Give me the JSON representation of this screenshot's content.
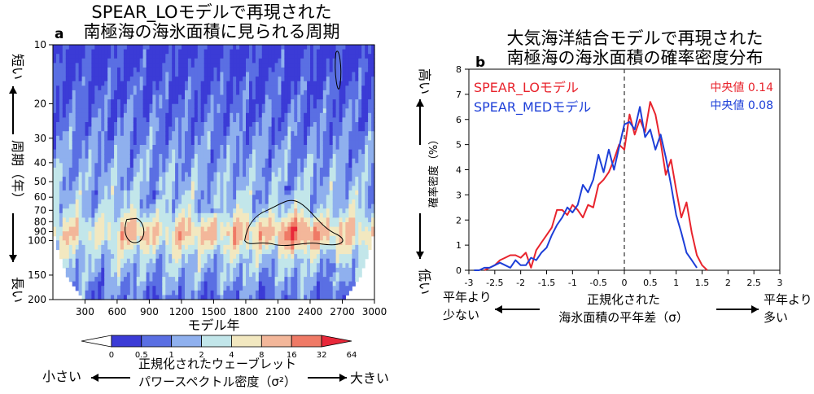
{
  "chart_data": [
    {
      "type": "heatmap",
      "panel_label": "a",
      "title_lines": [
        "SPEAR_LOモデルで再現された",
        "南極海の海氷面積に見られる周期"
      ],
      "xlabel": "モデル年",
      "x_ticks": [
        300,
        600,
        900,
        1200,
        1500,
        1800,
        2100,
        2400,
        2700,
        3000
      ],
      "xlim": [
        1,
        3000
      ],
      "y_ticks": [
        10,
        20,
        30,
        40,
        50,
        60,
        70,
        80,
        90,
        100,
        150,
        200
      ],
      "ylim": [
        10,
        200
      ],
      "y_scale": "log",
      "y_inverted": true,
      "ylabel_center": "周期（年）",
      "ylabel_top": "短い",
      "ylabel_bottom": "長い",
      "colorbar": {
        "levels": [
          "0",
          "0.5",
          "1",
          "2",
          "4",
          "8",
          "16",
          "32",
          "64"
        ],
        "colors": [
          "#ffffff",
          "#3b3bd6",
          "#5a6fe3",
          "#8fb0ee",
          "#c2e6ea",
          "#f2e8c0",
          "#f3b79a",
          "#ef7a66",
          "#e8283a",
          "#e8283a"
        ],
        "label_lines": [
          "正規化されたウェーブレット",
          "パワースペクトル密度（σ²）"
        ],
        "left_text": "小さい",
        "right_text": "大きい"
      }
    },
    {
      "type": "line",
      "panel_label": "b",
      "title_lines": [
        "大気海洋結合モデルで再現された",
        "南極海の海氷面積の確率密度分布"
      ],
      "xlim": [
        -3,
        3
      ],
      "ylim": [
        0,
        8
      ],
      "x_ticks": [
        "-3",
        "-2.5",
        "-2",
        "-1.5",
        "-1",
        "-0.5",
        "0",
        "0.5",
        "1",
        "1.5",
        "2",
        "2.5",
        "3"
      ],
      "y_ticks": [
        "0",
        "1",
        "2",
        "3",
        "4",
        "5",
        "6",
        "7",
        "8"
      ],
      "ylabel": "確率密度（%）",
      "ylabel_top": "高い",
      "ylabel_bottom": "低い",
      "xlabel_lines": [
        "正規化された",
        "海氷面積の平年差（σ）"
      ],
      "left_text_lines": [
        "平年より",
        "少ない"
      ],
      "right_text_lines": [
        "平年より",
        "多い"
      ],
      "zero_line": "dashed",
      "series": [
        {
          "name": "SPEAR_LOモデル",
          "median_label": "中央値 0.14",
          "color": "#e8242d",
          "x": [
            -2.7,
            -2.6,
            -2.5,
            -2.4,
            -2.3,
            -2.2,
            -2.1,
            -2.0,
            -1.9,
            -1.8,
            -1.7,
            -1.6,
            -1.5,
            -1.4,
            -1.3,
            -1.2,
            -1.1,
            -1.0,
            -0.9,
            -0.8,
            -0.7,
            -0.6,
            -0.5,
            -0.4,
            -0.3,
            -0.2,
            -0.1,
            0.0,
            0.1,
            0.2,
            0.3,
            0.4,
            0.5,
            0.6,
            0.7,
            0.8,
            0.9,
            1.0,
            1.1,
            1.2,
            1.3,
            1.4,
            1.5,
            1.6
          ],
          "y": [
            0,
            0.1,
            0.2,
            0.4,
            0.5,
            0.6,
            0.6,
            0.5,
            0.7,
            0.1,
            0.8,
            1.1,
            1.4,
            1.7,
            2.4,
            2.4,
            2.2,
            2.6,
            2.4,
            2.1,
            2.6,
            2.5,
            3.4,
            3.6,
            3.9,
            4.4,
            5.0,
            4.8,
            6.2,
            5.4,
            6.0,
            5.5,
            6.7,
            6.2,
            5.1,
            3.8,
            4.4,
            3.2,
            2.1,
            2.7,
            1.5,
            0.6,
            0.2,
            0
          ]
        },
        {
          "name": "SPEAR_MEDモデル",
          "median_label": "中央値 0.08",
          "color": "#1d3fd8",
          "x": [
            -2.9,
            -2.8,
            -2.7,
            -2.6,
            -2.5,
            -2.4,
            -2.3,
            -2.2,
            -2.1,
            -2.0,
            -1.9,
            -1.8,
            -1.7,
            -1.6,
            -1.5,
            -1.4,
            -1.3,
            -1.2,
            -1.1,
            -1.0,
            -0.9,
            -0.8,
            -0.7,
            -0.6,
            -0.5,
            -0.4,
            -0.3,
            -0.2,
            -0.1,
            0.0,
            0.1,
            0.2,
            0.3,
            0.4,
            0.5,
            0.6,
            0.7,
            0.8,
            0.9,
            1.0,
            1.1,
            1.2,
            1.3,
            1.4
          ],
          "y": [
            0,
            0,
            0.1,
            0.1,
            0.2,
            0.3,
            0.2,
            0.1,
            0.4,
            0.2,
            0.2,
            0.5,
            0.4,
            0.7,
            0.9,
            1.4,
            1.8,
            2.1,
            2.5,
            2.3,
            2.6,
            3.4,
            3.1,
            3.6,
            4.6,
            3.9,
            4.8,
            4.0,
            4.9,
            5.8,
            5.9,
            5.6,
            6.5,
            5.3,
            5.6,
            4.8,
            5.4,
            4.5,
            3.4,
            2.2,
            1.5,
            0.7,
            0.4,
            0.1
          ]
        }
      ]
    }
  ]
}
